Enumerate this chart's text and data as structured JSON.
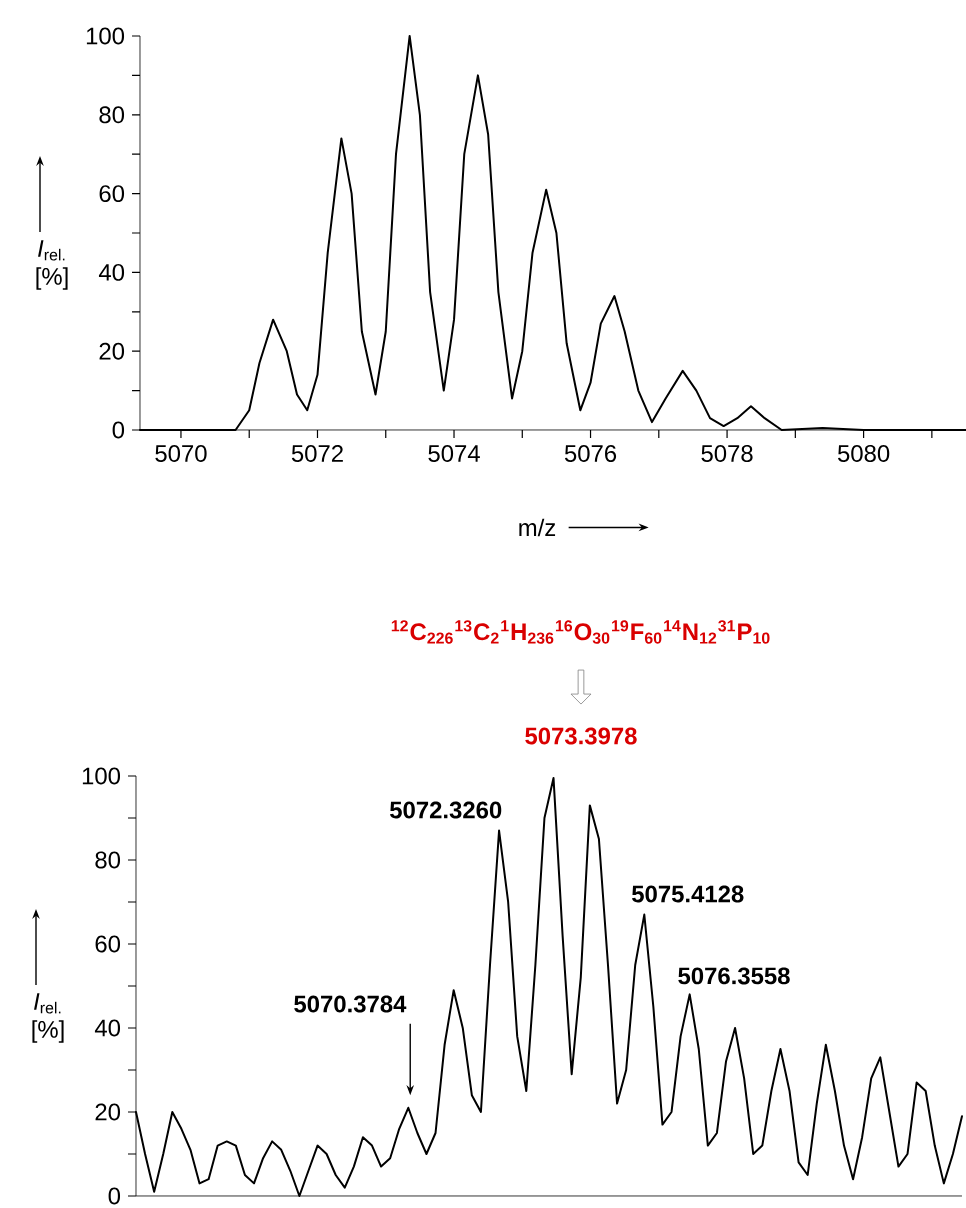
{
  "chart_data": [
    {
      "type": "line",
      "xlabel": "m/z",
      "ylabel": "*I*$_{rel.}$ [%]",
      "color": "#000000",
      "x": [
        5069.4,
        5070.8,
        5071.0,
        5071.15,
        5071.35,
        5071.55,
        5071.7,
        5071.85,
        5072.0,
        5072.15,
        5072.35,
        5072.5,
        5072.65,
        5072.85,
        5073.0,
        5073.15,
        5073.35,
        5073.5,
        5073.65,
        5073.85,
        5074.0,
        5074.15,
        5074.35,
        5074.5,
        5074.65,
        5074.85,
        5075.0,
        5075.15,
        5075.35,
        5075.5,
        5075.65,
        5075.85,
        5076.0,
        5076.15,
        5076.35,
        5076.5,
        5076.7,
        5076.9,
        5077.1,
        5077.35,
        5077.55,
        5077.75,
        5077.95,
        5078.15,
        5078.35,
        5078.55,
        5078.8,
        5079.4,
        5080.0,
        5081.5
      ],
      "values": [
        0,
        0,
        5,
        17,
        28,
        20,
        9,
        5,
        14,
        45,
        74,
        60,
        25,
        9,
        25,
        70,
        100,
        80,
        35,
        10,
        28,
        70,
        90,
        75,
        35,
        8,
        20,
        45,
        61,
        50,
        22,
        5,
        12,
        27,
        34,
        25,
        10,
        2,
        8,
        15,
        10,
        3,
        1,
        3,
        6,
        3,
        0,
        0.5,
        0,
        0
      ],
      "xlim": [
        5069.4,
        5081.5
      ],
      "ylim": [
        0,
        100
      ],
      "xticks": [
        5070,
        {
          "value": 5071,
          "label": null
        },
        5072,
        {
          "value": 5073,
          "label": null
        },
        5074,
        {
          "value": 5075,
          "label": null
        },
        5076,
        {
          "value": 5077,
          "label": null
        },
        5078,
        {
          "value": 5079,
          "label": null
        },
        5080,
        {
          "value": 5081,
          "label": null
        }
      ],
      "yticks": [
        0,
        {
          "value": 10,
          "label": null
        },
        20,
        {
          "value": 30,
          "label": null
        },
        40,
        {
          "value": 50,
          "label": null
        },
        60,
        {
          "value": 70,
          "label": null
        },
        80,
        {
          "value": 90,
          "label": null
        },
        100
      ]
    },
    {
      "type": "line",
      "ylabel": "*I*$_{rel.}$ [%]",
      "color": "#000000",
      "tick_labels": "y",
      "categories": [
        null,
        null,
        null,
        null,
        null,
        null,
        null,
        null,
        null,
        null,
        null,
        null,
        null,
        null,
        null,
        null,
        null,
        null,
        null,
        null,
        null,
        null,
        null,
        null,
        null,
        null,
        null,
        null,
        null,
        null,
        null,
        null,
        null,
        null,
        null,
        null,
        null,
        null,
        null,
        null,
        null,
        null,
        null,
        null,
        null,
        null,
        null,
        null,
        null,
        null,
        null,
        null,
        null,
        null,
        null,
        null,
        null,
        null,
        null,
        null,
        null,
        null,
        null,
        null,
        null,
        null,
        null,
        null,
        null,
        null,
        null,
        null,
        null,
        null,
        null,
        null,
        null,
        null,
        null,
        null,
        null,
        null,
        null,
        null,
        null,
        null,
        null,
        null,
        null,
        null,
        null,
        null
      ],
      "values": [
        20,
        10,
        1,
        10,
        20,
        16,
        11,
        3,
        4,
        12,
        13,
        12,
        5,
        3,
        9,
        13,
        11,
        6,
        0,
        6,
        12,
        10,
        5,
        2,
        7,
        14,
        12,
        7,
        9,
        16,
        21,
        15,
        10,
        15,
        36,
        49,
        40,
        24,
        20,
        55,
        87,
        70,
        38,
        25,
        55,
        90,
        99.5,
        62,
        29,
        52,
        93,
        85,
        55,
        22,
        30,
        55,
        67,
        45,
        17,
        20,
        38,
        48,
        35,
        12,
        15,
        32,
        40,
        28,
        10,
        12,
        25,
        35,
        25,
        8,
        5,
        22,
        36,
        25,
        12,
        4,
        14,
        28,
        33,
        20,
        7,
        10,
        27,
        25,
        12,
        3,
        10,
        19
      ],
      "ylim": [
        0,
        100
      ],
      "yticks": [
        0,
        {
          "value": 10,
          "label": null
        },
        20,
        {
          "value": 30,
          "label": null
        },
        40,
        {
          "value": 50,
          "label": null
        },
        60,
        {
          "value": 70,
          "label": null
        },
        80,
        {
          "value": 90,
          "label": null
        },
        100
      ],
      "annotations": [
        "$^{12}$C$_{226}$$^{13}$C$_{2}$$^{1}$H$_{236}$$^{16}$O$_{30}$$^{19}$F$_{60}$$^{14}$N$_{12}$$^{31}$P$_{10}$",
        "5073.3978",
        "5070.3784",
        "5072.3260",
        "5075.4128",
        "5076.3558"
      ]
    }
  ]
}
